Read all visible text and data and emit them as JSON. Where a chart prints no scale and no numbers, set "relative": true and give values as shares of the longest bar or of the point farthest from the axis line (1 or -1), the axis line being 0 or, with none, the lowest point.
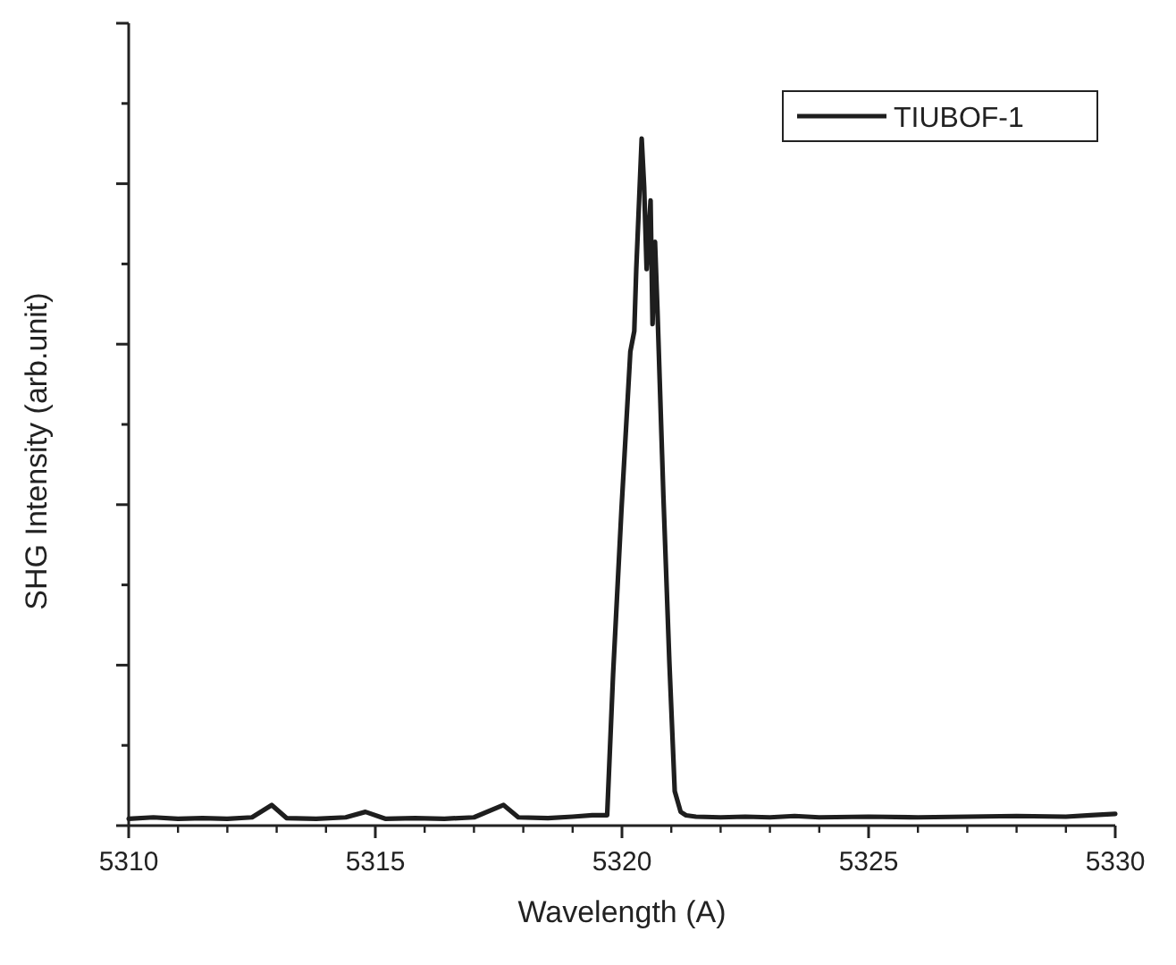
{
  "chart_data": {
    "type": "line",
    "relative": true,
    "xlabel": "Wavelength (A)",
    "ylabel": "SHG Intensity (arb.unit)",
    "xlim": [
      5310,
      5330
    ],
    "xticks": [
      5310,
      5315,
      5320,
      5325,
      5330
    ],
    "legend": "top right",
    "grid": false,
    "line_style": "solid",
    "series": [
      {
        "name": "TIUBOF-1",
        "color": "#1e1e1e",
        "x": [
          5310,
          5310.5,
          5311,
          5311.5,
          5312,
          5312.5,
          5312.9,
          5313.2,
          5313.8,
          5314.4,
          5314.8,
          5315.2,
          5315.8,
          5316.4,
          5317,
          5317.6,
          5317.9,
          5318.5,
          5319,
          5319.4,
          5319.7,
          5319.82,
          5319.99,
          5320.17,
          5320.25,
          5320.29,
          5320.4,
          5320.45,
          5320.5,
          5320.58,
          5320.62,
          5320.67,
          5320.72,
          5320.84,
          5320.96,
          5321.07,
          5321.19,
          5321.3,
          5321.5,
          5322,
          5322.5,
          5323,
          5323.5,
          5324,
          5325,
          5326,
          5327,
          5328,
          5329,
          5329.5,
          5330
        ],
        "values": [
          0.01,
          0.012,
          0.01,
          0.011,
          0.01,
          0.012,
          0.03,
          0.011,
          0.01,
          0.012,
          0.02,
          0.01,
          0.011,
          0.01,
          0.012,
          0.03,
          0.012,
          0.011,
          0.013,
          0.015,
          0.015,
          0.22,
          0.46,
          0.69,
          0.72,
          0.81,
          1.0,
          0.93,
          0.81,
          0.91,
          0.73,
          0.85,
          0.75,
          0.48,
          0.24,
          0.05,
          0.02,
          0.015,
          0.013,
          0.012,
          0.013,
          0.012,
          0.014,
          0.012,
          0.013,
          0.012,
          0.013,
          0.014,
          0.013,
          0.015,
          0.017
        ]
      }
    ]
  }
}
